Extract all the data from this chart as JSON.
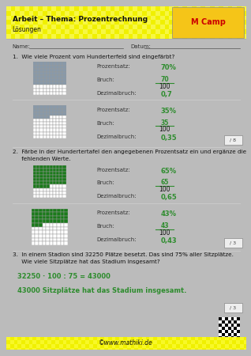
{
  "title": "Arbeit – Thema: Prozentrechnung",
  "subtitle": "Lösungen",
  "header_bg": "#f0f000",
  "page_bg": "#ffffff",
  "border_color": "#cccccc",
  "outer_bg": "#bbbbbb",
  "name_label": "Name:",
  "date_label": "Datum:",
  "q1_text": "1.  Wie viele Prozent vom Hunderterfeld sind eingefärbt?",
  "block1_prozentsatz_label": "Prozentsatz:",
  "block1_prozentsatz_val": "70%",
  "block1_bruch_label": "Bruch:",
  "block1_bruch_num": "70",
  "block1_bruch_den": "100",
  "block1_dezimal_label": "Dezimalbruch:",
  "block1_dezimal_val": "0,7",
  "block1_filled": 70,
  "block2_prozentsatz_label": "Prozentsatz:",
  "block2_prozentsatz_val": "35%",
  "block2_bruch_label": "Bruch:",
  "block2_bruch_num": "35",
  "block2_bruch_den": "100",
  "block2_dezimal_label": "Dezimalbruch:",
  "block2_dezimal_val": "0,35",
  "block2_filled": 35,
  "block2_score": "/ 8",
  "q2_text": "2.  Färbe in der Hundertertafel den angegebenen Prozentsatz ein und ergänze die\n     fehlenden Werte.",
  "block3_prozentsatz_label": "Prozentsatz:",
  "block3_prozentsatz_val": "65%",
  "block3_bruch_label": "Bruch:",
  "block3_bruch_num": "65",
  "block3_bruch_den": "100",
  "block3_dezimal_label": "Dezimalbruch:",
  "block3_dezimal_val": "0,65",
  "block3_filled": 65,
  "block4_prozentsatz_label": "Prozentsatz:",
  "block4_prozentsatz_val": "43%",
  "block4_bruch_label": "Bruch:",
  "block4_bruch_num": "43",
  "block4_bruch_den": "100",
  "block4_dezimal_label": "Dezimalbruch:",
  "block4_dezimal_val": "0,43",
  "block4_filled": 43,
  "block4_score": "/ 3",
  "q3_text": "3.  In einem Stadion sind 32250 Plätze besetzt. Das sind 75% aller Sitzplätze.\n     Wie viele Sitzplätze hat das Stadium insgesamt?",
  "calc_line": "32250 · 100 : 75 = 43000",
  "answer_line": "43000 Sitzplätze hat das Stadium insgesamt.",
  "q3_score": "/ 3",
  "footer_text": "©www.mathiki.de",
  "footer_bg": "#f0f000",
  "green_color": "#2d8c2d",
  "dark_green": "#1a7a1a",
  "grid_color": "#999999",
  "blue_grey": "#8899aa",
  "text_color": "#222222",
  "label_color": "#444444"
}
